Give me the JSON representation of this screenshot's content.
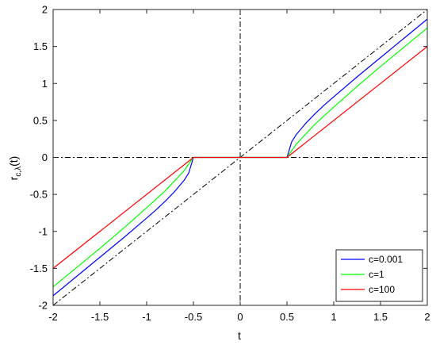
{
  "chart_data": {
    "type": "line",
    "title": "",
    "xlabel": "t",
    "ylabel": "r",
    "ylabel_sub": "c,λ",
    "ylabel_suffix": "(t)",
    "xlim": [
      -2,
      2
    ],
    "ylim": [
      -2,
      2
    ],
    "xticks": [
      -2,
      -1.5,
      -1,
      -0.5,
      0,
      0.5,
      1,
      1.5,
      2
    ],
    "yticks": [
      -2,
      -1.5,
      -1,
      -0.5,
      0,
      0.5,
      1,
      1.5,
      2
    ],
    "grid": false,
    "legend_position": "bottom-right",
    "reference_lines": [
      {
        "kind": "identity",
        "style": "dash-dot",
        "color": "#000000"
      },
      {
        "kind": "horizontal",
        "y": 0,
        "style": "dash-dot",
        "color": "#000000"
      },
      {
        "kind": "vertical",
        "x": 0,
        "style": "dash-dot",
        "color": "#000000"
      }
    ],
    "series": [
      {
        "name": "c=0.001",
        "color": "#0000ff",
        "x": [
          -2,
          -1.75,
          -1.5,
          -1.25,
          -1,
          -0.9,
          -0.8,
          -0.7,
          -0.6,
          -0.55,
          -0.5,
          0,
          0.5,
          0.55,
          0.6,
          0.7,
          0.8,
          0.9,
          1,
          1.25,
          1.5,
          1.75,
          2
        ],
        "y": [
          -1.87,
          -1.61,
          -1.35,
          -1.09,
          -0.82,
          -0.71,
          -0.59,
          -0.46,
          -0.31,
          -0.21,
          0,
          0,
          0,
          0.21,
          0.31,
          0.46,
          0.59,
          0.71,
          0.82,
          1.09,
          1.35,
          1.61,
          1.87
        ]
      },
      {
        "name": "c=1",
        "color": "#00ff00",
        "x": [
          -2,
          -1.75,
          -1.5,
          -1.25,
          -1,
          -0.8,
          -0.6,
          -0.5,
          0,
          0.5,
          0.6,
          0.8,
          1,
          1.25,
          1.5,
          1.75,
          2
        ],
        "y": [
          -1.75,
          -1.49,
          -1.23,
          -0.96,
          -0.68,
          -0.45,
          -0.18,
          0,
          0,
          0,
          0.18,
          0.45,
          0.68,
          0.96,
          1.23,
          1.49,
          1.75
        ]
      },
      {
        "name": "c=100",
        "color": "#ff0000",
        "x": [
          -2,
          -0.5,
          0,
          0.5,
          2
        ],
        "y": [
          -1.5,
          0,
          0,
          0,
          1.5
        ]
      }
    ]
  }
}
